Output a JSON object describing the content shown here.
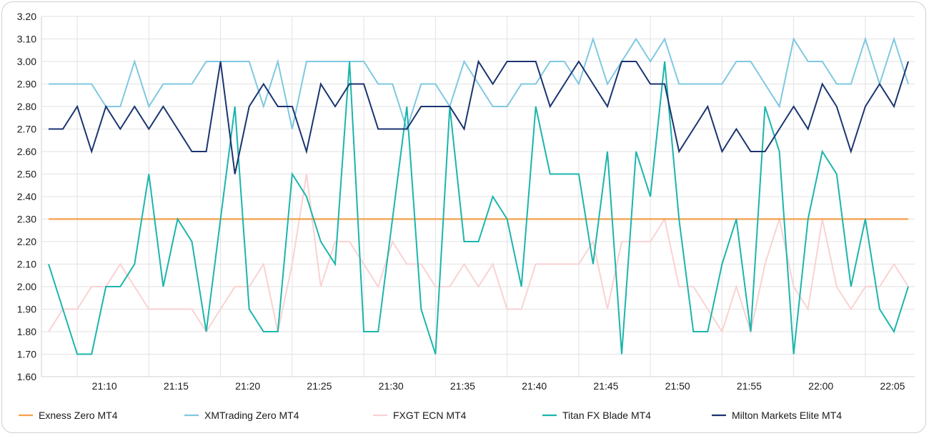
{
  "chart_data": {
    "type": "line",
    "y_ticks": [
      "1.60",
      "1.70",
      "1.80",
      "1.90",
      "2.00",
      "2.10",
      "2.20",
      "2.30",
      "2.40",
      "2.50",
      "2.60",
      "2.70",
      "2.80",
      "2.90",
      "3.00",
      "3.10",
      "3.20"
    ],
    "ylim": [
      1.6,
      3.2
    ],
    "x_start": "21:06",
    "x_end": "22:06",
    "x_tick_labels": [
      "21:10",
      "21:15",
      "21:20",
      "21:25",
      "21:30",
      "21:35",
      "21:40",
      "21:45",
      "21:50",
      "21:55",
      "22:00",
      "22:05"
    ],
    "grid": true,
    "legend_position": "bottom",
    "x": [
      "21:06",
      "21:07",
      "21:08",
      "21:09",
      "21:10",
      "21:11",
      "21:12",
      "21:13",
      "21:14",
      "21:15",
      "21:16",
      "21:17",
      "21:18",
      "21:19",
      "21:20",
      "21:21",
      "21:22",
      "21:23",
      "21:24",
      "21:25",
      "21:26",
      "21:27",
      "21:28",
      "21:29",
      "21:30",
      "21:31",
      "21:32",
      "21:33",
      "21:34",
      "21:35",
      "21:36",
      "21:37",
      "21:38",
      "21:39",
      "21:40",
      "21:41",
      "21:42",
      "21:43",
      "21:44",
      "21:45",
      "21:46",
      "21:47",
      "21:48",
      "21:49",
      "21:50",
      "21:51",
      "21:52",
      "21:53",
      "21:54",
      "21:55",
      "21:56",
      "21:57",
      "21:58",
      "21:59",
      "22:00",
      "22:01",
      "22:02",
      "22:03",
      "22:04",
      "22:05",
      "22:06"
    ],
    "series": [
      {
        "name": "Exness Zero MT4",
        "color": "#F5A04A",
        "values": [
          2.3,
          2.3,
          2.3,
          2.3,
          2.3,
          2.3,
          2.3,
          2.3,
          2.3,
          2.3,
          2.3,
          2.3,
          2.3,
          2.3,
          2.3,
          2.3,
          2.3,
          2.3,
          2.3,
          2.3,
          2.3,
          2.3,
          2.3,
          2.3,
          2.3,
          2.3,
          2.3,
          2.3,
          2.3,
          2.3,
          2.3,
          2.3,
          2.3,
          2.3,
          2.3,
          2.3,
          2.3,
          2.3,
          2.3,
          2.3,
          2.3,
          2.3,
          2.3,
          2.3,
          2.3,
          2.3,
          2.3,
          2.3,
          2.3,
          2.3,
          2.3,
          2.3,
          2.3,
          2.3,
          2.3,
          2.3,
          2.3,
          2.3,
          2.3,
          2.3,
          2.3
        ]
      },
      {
        "name": "XMTrading Zero MT4",
        "color": "#7FC8E0",
        "values": [
          2.9,
          2.9,
          2.9,
          2.9,
          2.8,
          2.8,
          3.0,
          2.8,
          2.9,
          2.9,
          2.9,
          3.0,
          3.0,
          3.0,
          3.0,
          2.8,
          3.0,
          2.7,
          3.0,
          3.0,
          3.0,
          3.0,
          3.0,
          2.9,
          2.9,
          2.7,
          2.9,
          2.9,
          2.8,
          3.0,
          2.9,
          2.8,
          2.8,
          2.9,
          2.9,
          3.0,
          3.0,
          2.9,
          3.1,
          2.9,
          3.0,
          3.1,
          3.0,
          3.1,
          2.9,
          2.9,
          2.9,
          2.9,
          3.0,
          3.0,
          2.9,
          2.8,
          3.1,
          3.0,
          3.0,
          2.9,
          2.9,
          3.1,
          2.9,
          3.1,
          2.9
        ]
      },
      {
        "name": "FXGT ECN MT4",
        "color": "#FAD2D2",
        "values": [
          1.8,
          1.9,
          1.9,
          2.0,
          2.0,
          2.1,
          2.0,
          1.9,
          1.9,
          1.9,
          1.9,
          1.8,
          1.9,
          2.0,
          2.0,
          2.1,
          1.8,
          2.1,
          2.5,
          2.0,
          2.2,
          2.2,
          2.1,
          2.0,
          2.2,
          2.1,
          2.1,
          2.0,
          2.0,
          2.1,
          2.0,
          2.1,
          1.9,
          1.9,
          2.1,
          2.1,
          2.1,
          2.1,
          2.2,
          1.9,
          2.2,
          2.2,
          2.2,
          2.3,
          2.0,
          2.0,
          1.9,
          1.8,
          2.0,
          1.8,
          2.1,
          2.3,
          2.0,
          1.9,
          2.3,
          2.0,
          1.9,
          2.0,
          2.0,
          2.1,
          2.0
        ]
      },
      {
        "name": "Titan FX Blade MT4",
        "color": "#1BB5AC",
        "values": [
          2.1,
          1.9,
          1.7,
          1.7,
          2.0,
          2.0,
          2.1,
          2.5,
          2.0,
          2.3,
          2.2,
          1.8,
          2.3,
          2.8,
          1.9,
          1.8,
          1.8,
          2.5,
          2.4,
          2.2,
          2.1,
          3.0,
          1.8,
          1.8,
          2.3,
          2.8,
          1.9,
          1.7,
          2.8,
          2.2,
          2.2,
          2.4,
          2.3,
          2.0,
          2.8,
          2.5,
          2.5,
          2.5,
          2.1,
          2.6,
          1.7,
          2.6,
          2.4,
          3.0,
          2.3,
          1.8,
          1.8,
          2.1,
          2.3,
          1.8,
          2.8,
          2.6,
          1.7,
          2.3,
          2.6,
          2.5,
          2.0,
          2.3,
          1.9,
          1.8,
          2.0
        ]
      },
      {
        "name": "Milton Markets Elite MT4",
        "color": "#1A3470",
        "values": [
          2.7,
          2.7,
          2.8,
          2.6,
          2.8,
          2.7,
          2.8,
          2.7,
          2.8,
          2.7,
          2.6,
          2.6,
          3.0,
          2.5,
          2.8,
          2.9,
          2.8,
          2.8,
          2.6,
          2.9,
          2.8,
          2.9,
          2.9,
          2.7,
          2.7,
          2.7,
          2.8,
          2.8,
          2.8,
          2.7,
          3.0,
          2.9,
          3.0,
          3.0,
          3.0,
          2.8,
          2.9,
          3.0,
          2.9,
          2.8,
          3.0,
          3.0,
          2.9,
          2.9,
          2.6,
          2.7,
          2.8,
          2.6,
          2.7,
          2.6,
          2.6,
          2.7,
          2.8,
          2.7,
          2.9,
          2.8,
          2.6,
          2.8,
          2.9,
          2.8,
          3.0
        ]
      }
    ]
  }
}
